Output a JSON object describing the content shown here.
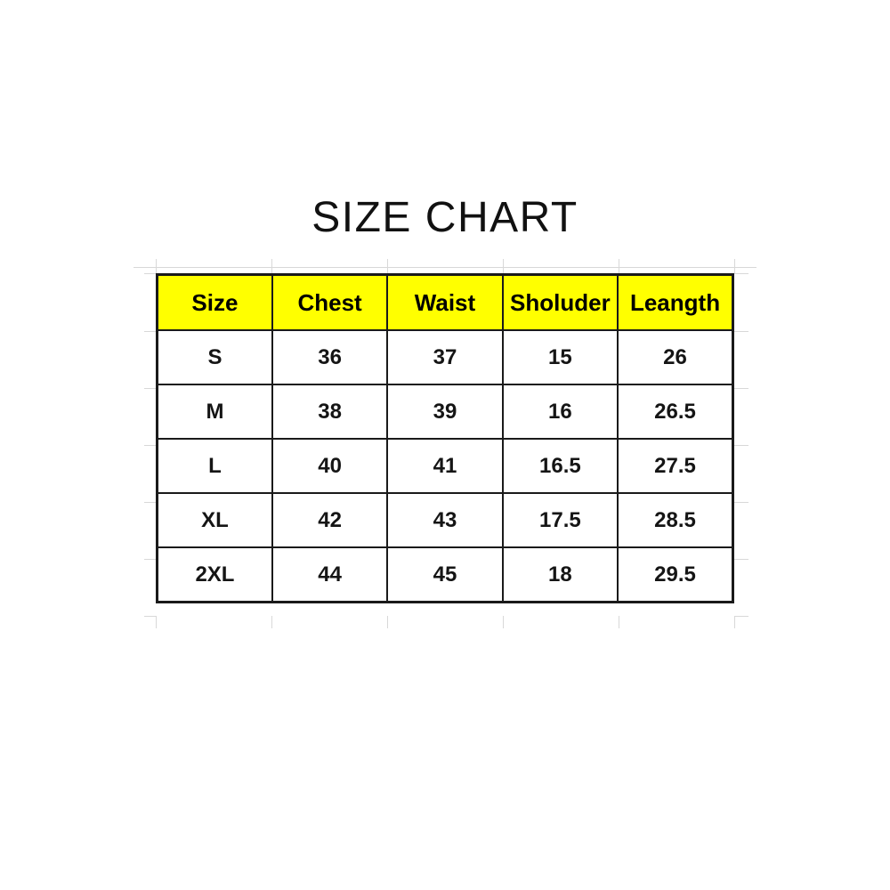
{
  "page": {
    "background_color": "#ffffff"
  },
  "chart_data": {
    "type": "table",
    "title": "SIZE CHART",
    "columns": [
      "Size",
      "Chest",
      "Waist",
      "Sholuder",
      "Leangth"
    ],
    "rows": [
      [
        "S",
        "36",
        "37",
        "15",
        "26"
      ],
      [
        "M",
        "38",
        "39",
        "16",
        "26.5"
      ],
      [
        "L",
        "40",
        "41",
        "16.5",
        "27.5"
      ],
      [
        "XL",
        "42",
        "43",
        "17.5",
        "28.5"
      ],
      [
        "2XL",
        "44",
        "45",
        "18",
        "29.5"
      ]
    ],
    "layout_hints": {
      "header_position": "top",
      "grid": "full black borders, faint spreadsheet gridline stubs outside table"
    },
    "styles": {
      "header_bg": "#ffff00",
      "header_text": "#000000",
      "cell_text": "#151515",
      "border_color": "#1a1a1a",
      "gridline_color": "#d8d8d8",
      "page_bg": "#ffffff"
    }
  }
}
